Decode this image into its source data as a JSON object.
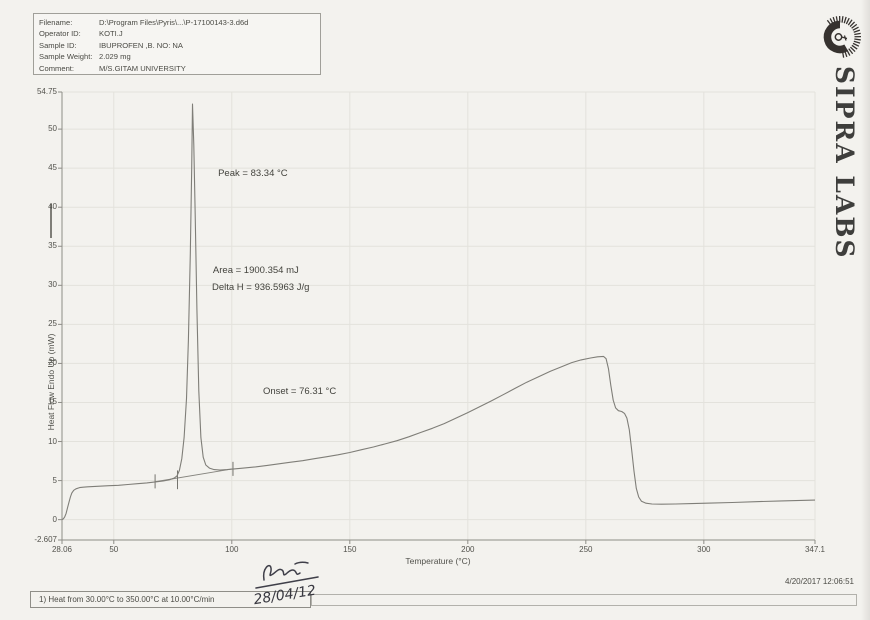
{
  "header": {
    "rows": [
      {
        "label": "Filename:",
        "value": "D:\\Program Files\\Pyris\\...\\P-17100143-3.d6d"
      },
      {
        "label": "Operator ID:",
        "value": "KOTI.J"
      },
      {
        "label": "Sample ID:",
        "value": "IBUPROFEN ,B. NO: NA"
      },
      {
        "label": "Sample Weight:",
        "value": "2.029 mg"
      },
      {
        "label": "Comment:",
        "value": "M/S.GITAM UNIVERSITY"
      }
    ]
  },
  "brand": {
    "name": "SIPRA LABS"
  },
  "chart_data": {
    "type": "line",
    "title": "",
    "xlabel": "Temperature (°C)",
    "ylabel": "Heat Flow Endo Up (mW)",
    "xlim": [
      28.06,
      347.1
    ],
    "ylim": [
      -2.607,
      54.75
    ],
    "grid": true,
    "x_ticks": [
      {
        "v": 28.06,
        "t": "28.06"
      },
      {
        "v": 50,
        "t": "50"
      },
      {
        "v": 100,
        "t": "100"
      },
      {
        "v": 150,
        "t": "150"
      },
      {
        "v": 200,
        "t": "200"
      },
      {
        "v": 250,
        "t": "250"
      },
      {
        "v": 300,
        "t": "300"
      },
      {
        "v": 347.1,
        "t": "347.1"
      }
    ],
    "y_ticks": [
      {
        "v": -2.607,
        "t": "-2.607"
      },
      {
        "v": 0,
        "t": "0"
      },
      {
        "v": 5,
        "t": "5"
      },
      {
        "v": 10,
        "t": "10"
      },
      {
        "v": 15,
        "t": "15"
      },
      {
        "v": 20,
        "t": "20"
      },
      {
        "v": 25,
        "t": "25"
      },
      {
        "v": 30,
        "t": "30"
      },
      {
        "v": 35,
        "t": "35"
      },
      {
        "v": 40,
        "t": "40"
      },
      {
        "v": 45,
        "t": "45"
      },
      {
        "v": 50,
        "t": "50"
      },
      {
        "v": 54.75,
        "t": "54.75"
      }
    ],
    "annotations": [
      {
        "id": "peak",
        "text": "Peak = 83.34 °C",
        "x": 94.2,
        "y": 45.0
      },
      {
        "id": "area",
        "text": "Area = 1900.354 mJ",
        "x": 92.0,
        "y": 32.6
      },
      {
        "id": "deltah",
        "text": "Delta H = 936.5963 J/g",
        "x": 91.6,
        "y": 30.4
      },
      {
        "id": "onset",
        "text": "Onset = 76.31 °C",
        "x": 113.2,
        "y": 17.1
      }
    ],
    "baseline": [
      [
        67.5,
        4.85
      ],
      [
        100.5,
        6.5
      ]
    ],
    "marker_ticks": [
      {
        "x": 67.5,
        "v1": 4.0,
        "v2": 5.8
      },
      {
        "x": 100.5,
        "v1": 5.6,
        "v2": 7.4
      },
      {
        "x": 77.0,
        "v1": 3.9,
        "v2": 6.3
      }
    ],
    "series": [
      {
        "name": "heat-flow",
        "points": [
          [
            28.06,
            0
          ],
          [
            28.6,
            0.1
          ],
          [
            29.2,
            0.35
          ],
          [
            29.8,
            0.8
          ],
          [
            30.4,
            1.5
          ],
          [
            31,
            2.2
          ],
          [
            31.6,
            2.9
          ],
          [
            32.2,
            3.4
          ],
          [
            33,
            3.75
          ],
          [
            34,
            3.95
          ],
          [
            35.5,
            4.1
          ],
          [
            37,
            4.15
          ],
          [
            39,
            4.2
          ],
          [
            42,
            4.25
          ],
          [
            45,
            4.3
          ],
          [
            48,
            4.35
          ],
          [
            52,
            4.4
          ],
          [
            56,
            4.5
          ],
          [
            60,
            4.6
          ],
          [
            64,
            4.7
          ],
          [
            68,
            4.85
          ],
          [
            71,
            4.95
          ],
          [
            73.5,
            5.1
          ],
          [
            75.5,
            5.3
          ],
          [
            76.8,
            5.6
          ],
          [
            77.8,
            6.3
          ],
          [
            78.8,
            7.8
          ],
          [
            79.8,
            10.5
          ],
          [
            80.8,
            15.5
          ],
          [
            81.6,
            23
          ],
          [
            82.4,
            34
          ],
          [
            83,
            45
          ],
          [
            83.34,
            53.2
          ],
          [
            83.9,
            48
          ],
          [
            84.5,
            39
          ],
          [
            85.2,
            27
          ],
          [
            86,
            16.5
          ],
          [
            86.9,
            10.5
          ],
          [
            87.9,
            8.0
          ],
          [
            89,
            7.0
          ],
          [
            90.5,
            6.6
          ],
          [
            92.5,
            6.4
          ],
          [
            95,
            6.35
          ],
          [
            98,
            6.4
          ],
          [
            101,
            6.5
          ],
          [
            105,
            6.6
          ],
          [
            110,
            6.75
          ],
          [
            115,
            6.95
          ],
          [
            120,
            7.15
          ],
          [
            125,
            7.35
          ],
          [
            130,
            7.55
          ],
          [
            135,
            7.8
          ],
          [
            140,
            8.05
          ],
          [
            145,
            8.3
          ],
          [
            150,
            8.6
          ],
          [
            155,
            8.95
          ],
          [
            160,
            9.3
          ],
          [
            165,
            9.7
          ],
          [
            170,
            10.1
          ],
          [
            175,
            10.6
          ],
          [
            180,
            11.15
          ],
          [
            185,
            11.7
          ],
          [
            190,
            12.3
          ],
          [
            195,
            13.0
          ],
          [
            200,
            13.7
          ],
          [
            205,
            14.45
          ],
          [
            210,
            15.2
          ],
          [
            215,
            16.0
          ],
          [
            220,
            16.8
          ],
          [
            225,
            17.6
          ],
          [
            230,
            18.3
          ],
          [
            235,
            19.0
          ],
          [
            240,
            19.6
          ],
          [
            244,
            20.1
          ],
          [
            248,
            20.45
          ],
          [
            252,
            20.7
          ],
          [
            255,
            20.85
          ],
          [
            257.5,
            20.9
          ],
          [
            258.6,
            20.6
          ],
          [
            259.6,
            19.3
          ],
          [
            260.6,
            17.2
          ],
          [
            261.6,
            15.3
          ],
          [
            262.6,
            14.3
          ],
          [
            263.8,
            13.95
          ],
          [
            265.2,
            13.85
          ],
          [
            266.4,
            13.6
          ],
          [
            267.4,
            13.0
          ],
          [
            268.4,
            11.5
          ],
          [
            269.4,
            9.0
          ],
          [
            270.4,
            6.2
          ],
          [
            271.4,
            4.0
          ],
          [
            272.4,
            2.9
          ],
          [
            273.6,
            2.35
          ],
          [
            275.5,
            2.1
          ],
          [
            278,
            2.0
          ],
          [
            282,
            1.98
          ],
          [
            288,
            2.0
          ],
          [
            295,
            2.05
          ],
          [
            303,
            2.12
          ],
          [
            312,
            2.2
          ],
          [
            322,
            2.3
          ],
          [
            333,
            2.4
          ],
          [
            347.1,
            2.5
          ]
        ]
      }
    ]
  },
  "footer": {
    "method": "1) Heat from 30.00°C to 350.00°C at 10.00°C/min",
    "datetime": "4/20/2017 12:06:51",
    "signature_date": "28/04/12"
  },
  "colors": {
    "curve": "#7f7e78",
    "grid": "#e3e2dc",
    "axis": "#8e8d87",
    "ink": "#4b4b45",
    "logo": "#36322f",
    "signature_ink": "#3f3f49"
  }
}
